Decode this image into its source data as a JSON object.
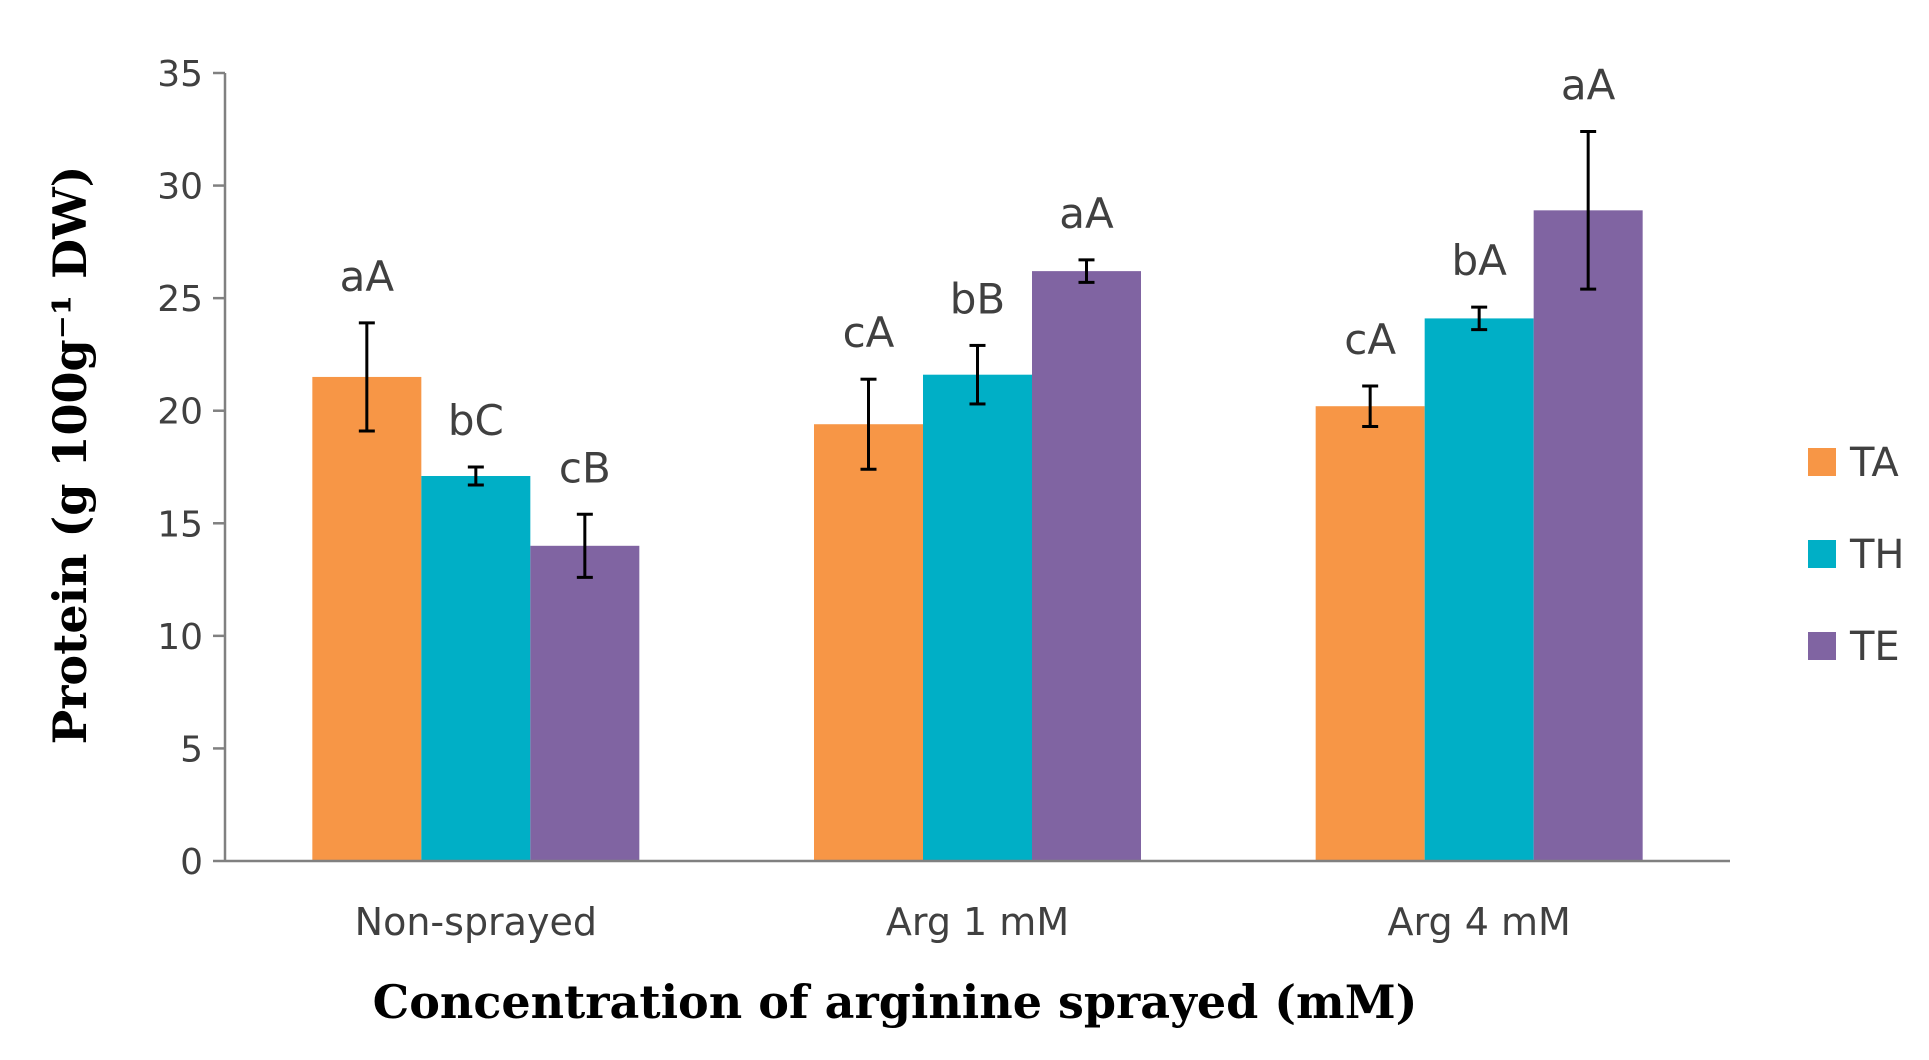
{
  "chart_data": {
    "type": "bar",
    "title": "",
    "xlabel": "Concentration of arginine sprayed (mM)",
    "ylabel": "Protein (g 100g⁻¹ DW)",
    "ylim": [
      0,
      35
    ],
    "yticks": [
      0,
      5,
      10,
      15,
      20,
      25,
      30,
      35
    ],
    "grid": false,
    "legend_position": "right",
    "categories": [
      "Non-sprayed",
      "Arg 1 mM",
      "Arg 4 mM"
    ],
    "series": [
      {
        "name": "TA",
        "color": "#F79646",
        "values": [
          21.5,
          19.4,
          20.2
        ],
        "errors": [
          2.4,
          2.0,
          0.9
        ],
        "labels": [
          "aA",
          "cA",
          "cA"
        ]
      },
      {
        "name": "TH",
        "color": "#00AFC6",
        "values": [
          17.1,
          21.6,
          24.1
        ],
        "errors": [
          0.4,
          1.3,
          0.5
        ],
        "labels": [
          "bC",
          "bB",
          "bA"
        ]
      },
      {
        "name": "TE",
        "color": "#8064A2",
        "values": [
          14.0,
          26.2,
          28.9
        ],
        "errors": [
          1.4,
          0.5,
          3.5
        ],
        "labels": [
          "cB",
          "aA",
          "aA"
        ]
      }
    ]
  }
}
